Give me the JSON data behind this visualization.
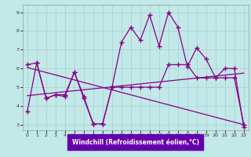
{
  "title": "",
  "xlabel": "Windchill (Refroidissement éolien,°C)",
  "bg_color": "#c2e8e8",
  "line_color": "#880088",
  "grid_color": "#a8d0d0",
  "xlabel_bg": "#6600aa",
  "xlabel_color": "#ffffff",
  "xlim": [
    -0.5,
    23.5
  ],
  "ylim": [
    2.7,
    9.4
  ],
  "xticks": [
    0,
    1,
    2,
    3,
    4,
    5,
    6,
    7,
    8,
    9,
    10,
    11,
    12,
    13,
    14,
    15,
    16,
    17,
    18,
    19,
    20,
    21,
    22,
    23
  ],
  "yticks": [
    3,
    4,
    5,
    6,
    7,
    8,
    9
  ],
  "series1_x": [
    0,
    1,
    2,
    3,
    4,
    5,
    6,
    7,
    8,
    9,
    10,
    11,
    12,
    13,
    14,
    15,
    16,
    17,
    18,
    19,
    20,
    21,
    22,
    23
  ],
  "series1_y": [
    3.7,
    6.3,
    4.4,
    4.6,
    4.5,
    5.8,
    4.4,
    3.05,
    3.05,
    5.0,
    7.4,
    8.2,
    7.5,
    8.85,
    7.2,
    9.0,
    8.2,
    6.1,
    7.1,
    6.5,
    5.5,
    6.0,
    6.0,
    2.85
  ],
  "series2_x": [
    0,
    1,
    2,
    3,
    4,
    5,
    6,
    7,
    8,
    9,
    10,
    11,
    12,
    13,
    14,
    15,
    16,
    17,
    18,
    19,
    20,
    21,
    22,
    23
  ],
  "series2_y": [
    6.2,
    6.3,
    4.4,
    4.6,
    4.6,
    5.8,
    4.5,
    3.05,
    3.05,
    5.0,
    5.0,
    5.0,
    5.0,
    5.0,
    5.0,
    6.2,
    6.2,
    6.2,
    5.5,
    5.5,
    5.5,
    5.5,
    5.5,
    3.0
  ],
  "trend1_x": [
    0,
    23
  ],
  "trend1_y": [
    4.55,
    5.75
  ],
  "trend2_x": [
    0,
    23
  ],
  "trend2_y": [
    6.05,
    3.0
  ]
}
